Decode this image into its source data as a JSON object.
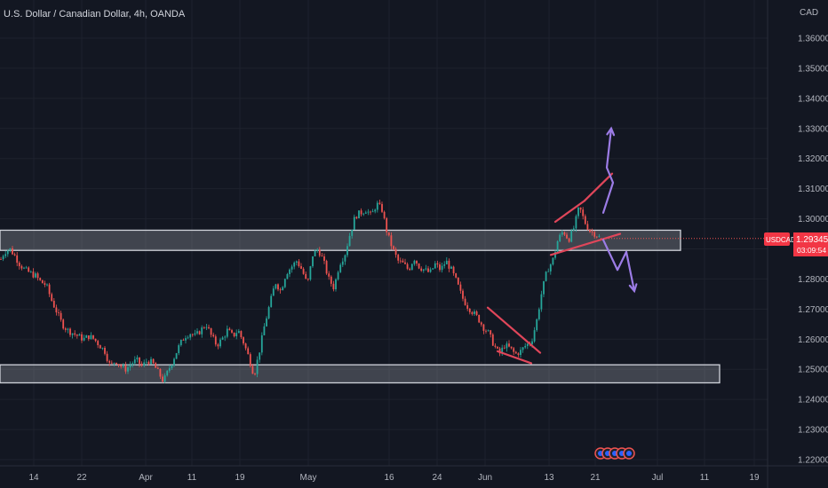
{
  "chart_title": "U.S. Dollar / Canadian Dollar, 4h, OANDA",
  "currency": "CAD",
  "symbol": "USDCAD",
  "last_price": "1.29345",
  "countdown": "03:09:54",
  "colors": {
    "background": "#131722",
    "grid": "#1e222d",
    "up": "#26a69a",
    "down": "#ef5350",
    "zone_fill": "#9598a1",
    "zone_border": "#d1d4dc",
    "trend": "#e0465a",
    "arrow": "#9c7ce6",
    "tag": "#f23645"
  },
  "chart_data": {
    "type": "candlestick",
    "title": "U.S. Dollar / Canadian Dollar, 4h, OANDA",
    "y_unit": "CAD",
    "ylim": [
      1.2155,
      1.3685
    ],
    "y_ticks": [
      "1.36000",
      "1.35000",
      "1.34000",
      "1.33000",
      "1.32000",
      "1.31000",
      "1.30000",
      "1.29000",
      "1.28000",
      "1.27000",
      "1.26000",
      "1.25000",
      "1.24000",
      "1.23000",
      "1.22000"
    ],
    "x_ticks": [
      "14",
      "22",
      "Apr",
      "11",
      "19",
      "May",
      "16",
      "24",
      "Jun",
      "13",
      "21",
      "Jul",
      "11",
      "19"
    ],
    "price_path": [
      [
        0,
        1.286
      ],
      [
        5,
        1.289
      ],
      [
        11,
        1.29
      ],
      [
        16,
        1.288
      ],
      [
        22,
        1.285
      ],
      [
        28,
        1.283
      ],
      [
        34,
        1.282
      ],
      [
        40,
        1.281
      ],
      [
        46,
        1.279
      ],
      [
        52,
        1.278
      ],
      [
        58,
        1.273
      ],
      [
        64,
        1.269
      ],
      [
        70,
        1.265
      ],
      [
        76,
        1.263
      ],
      [
        82,
        1.262
      ],
      [
        88,
        1.261
      ],
      [
        94,
        1.26
      ],
      [
        100,
        1.261
      ],
      [
        106,
        1.26
      ],
      [
        112,
        1.258
      ],
      [
        118,
        1.256
      ],
      [
        124,
        1.251
      ],
      [
        130,
        1.253
      ],
      [
        136,
        1.251
      ],
      [
        142,
        1.25
      ],
      [
        148,
        1.252
      ],
      [
        154,
        1.253
      ],
      [
        160,
        1.251
      ],
      [
        166,
        1.253
      ],
      [
        172,
        1.252
      ],
      [
        178,
        1.249
      ],
      [
        184,
        1.246
      ],
      [
        190,
        1.25
      ],
      [
        196,
        1.254
      ],
      [
        202,
        1.258
      ],
      [
        208,
        1.261
      ],
      [
        214,
        1.262
      ],
      [
        220,
        1.261
      ],
      [
        226,
        1.263
      ],
      [
        232,
        1.265
      ],
      [
        238,
        1.261
      ],
      [
        244,
        1.258
      ],
      [
        250,
        1.26
      ],
      [
        256,
        1.263
      ],
      [
        262,
        1.261
      ],
      [
        268,
        1.263
      ],
      [
        274,
        1.259
      ],
      [
        280,
        1.254
      ],
      [
        286,
        1.248
      ],
      [
        292,
        1.256
      ],
      [
        298,
        1.265
      ],
      [
        304,
        1.272
      ],
      [
        310,
        1.279
      ],
      [
        316,
        1.276
      ],
      [
        322,
        1.282
      ],
      [
        328,
        1.284
      ],
      [
        334,
        1.286
      ],
      [
        340,
        1.283
      ],
      [
        346,
        1.278
      ],
      [
        352,
        1.288
      ],
      [
        358,
        1.29
      ],
      [
        364,
        1.286
      ],
      [
        370,
        1.28
      ],
      [
        376,
        1.277
      ],
      [
        382,
        1.285
      ],
      [
        388,
        1.288
      ],
      [
        394,
        1.295
      ],
      [
        400,
        1.301
      ],
      [
        406,
        1.302
      ],
      [
        412,
        1.303
      ],
      [
        418,
        1.301
      ],
      [
        424,
        1.305
      ],
      [
        430,
        1.303
      ],
      [
        436,
        1.295
      ],
      [
        442,
        1.29
      ],
      [
        448,
        1.286
      ],
      [
        454,
        1.285
      ],
      [
        460,
        1.283
      ],
      [
        466,
        1.287
      ],
      [
        472,
        1.284
      ],
      [
        478,
        1.283
      ],
      [
        484,
        1.282
      ],
      [
        490,
        1.285
      ],
      [
        496,
        1.283
      ],
      [
        502,
        1.286
      ],
      [
        508,
        1.283
      ],
      [
        514,
        1.279
      ],
      [
        520,
        1.274
      ],
      [
        526,
        1.271
      ],
      [
        532,
        1.269
      ],
      [
        538,
        1.267
      ],
      [
        544,
        1.264
      ],
      [
        550,
        1.262
      ],
      [
        556,
        1.258
      ],
      [
        562,
        1.255
      ],
      [
        568,
        1.258
      ],
      [
        574,
        1.257
      ],
      [
        580,
        1.255
      ],
      [
        586,
        1.256
      ],
      [
        592,
        1.258
      ],
      [
        598,
        1.259
      ],
      [
        604,
        1.266
      ],
      [
        610,
        1.276
      ],
      [
        616,
        1.283
      ],
      [
        622,
        1.286
      ],
      [
        628,
        1.293
      ],
      [
        634,
        1.296
      ],
      [
        640,
        1.293
      ],
      [
        646,
        1.297
      ],
      [
        652,
        1.304
      ],
      [
        658,
        1.299
      ],
      [
        664,
        1.296
      ],
      [
        670,
        1.295
      ],
      [
        676,
        1.2935
      ]
    ],
    "zones": [
      {
        "top": 1.2962,
        "bottom": 1.2895,
        "x_start": 0,
        "x_end": 766
      },
      {
        "top": 1.2515,
        "bottom": 1.2455,
        "x_start": 0,
        "x_end": 810
      }
    ],
    "trend_lines": [
      {
        "x1": 549,
        "y1": 1.2705,
        "x2": 608,
        "y2": 1.2555
      },
      {
        "x1": 560,
        "y1": 1.256,
        "x2": 598,
        "y2": 1.252
      },
      {
        "x1": 625,
        "y1": 1.299,
        "x2": 658,
        "y2": 1.306
      },
      {
        "x1": 620,
        "y1": 1.288,
        "x2": 698,
        "y2": 1.295
      },
      {
        "x1": 658,
        "y1": 1.306,
        "x2": 689,
        "y2": 1.315
      }
    ],
    "projection_paths": [
      {
        "direction": "up",
        "points": [
          [
            679,
            1.302
          ],
          [
            690,
            1.312
          ],
          [
            683,
            1.317
          ],
          [
            688,
            1.33
          ]
        ]
      },
      {
        "direction": "down",
        "points": [
          [
            679,
            1.293
          ],
          [
            695,
            1.283
          ],
          [
            705,
            1.289
          ],
          [
            714,
            1.276
          ]
        ]
      }
    ]
  }
}
